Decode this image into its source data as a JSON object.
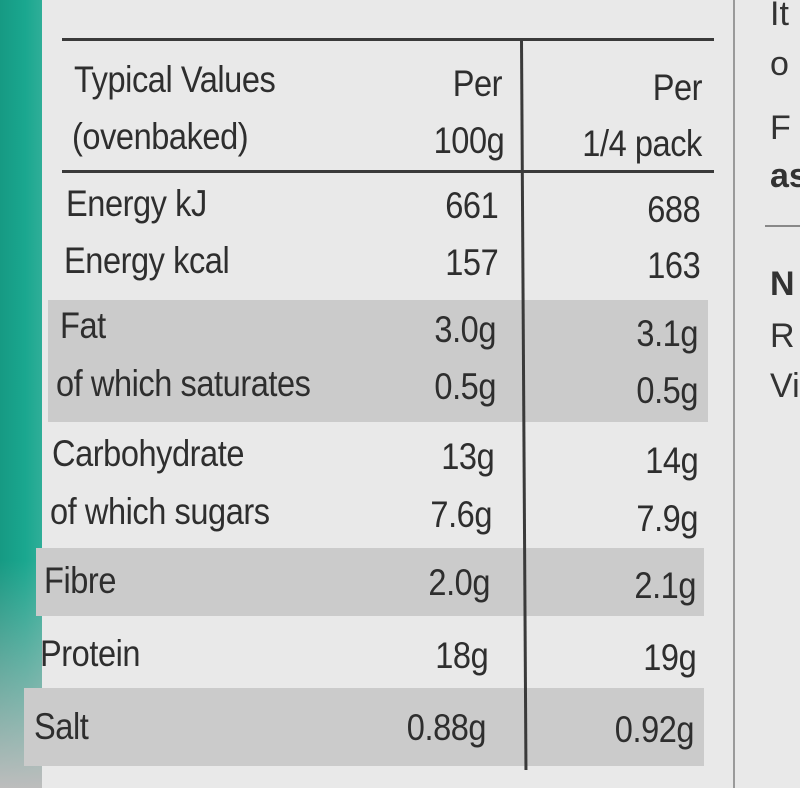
{
  "table": {
    "header": {
      "col1_line1": "Typical Values",
      "col1_line2": "(ovenbaked)",
      "col2_line1": "Per",
      "col2_line2": "100g",
      "col3_line1": "Per",
      "col3_line2": "1/4 pack"
    },
    "rows": [
      {
        "label": "Energy kJ",
        "per100": "661",
        "perPack": "688"
      },
      {
        "label": "Energy kcal",
        "per100": "157",
        "perPack": "163"
      },
      {
        "label": "Fat",
        "per100": "3.0g",
        "perPack": "3.1g"
      },
      {
        "label": "of which saturates",
        "per100": "0.5g",
        "perPack": "0.5g"
      },
      {
        "label": "Carbohydrate",
        "per100": "13g",
        "perPack": "14g"
      },
      {
        "label": "of which sugars",
        "per100": "7.6g",
        "perPack": "7.9g"
      },
      {
        "label": "Fibre",
        "per100": "2.0g",
        "perPack": "2.1g"
      },
      {
        "label": "Protein",
        "per100": "18g",
        "perPack": "19g"
      },
      {
        "label": "Salt",
        "per100": "0.88g",
        "perPack": "0.92g"
      }
    ]
  },
  "right_fragments": [
    "It",
    "o",
    "F",
    "as",
    "N",
    "R",
    "Vi"
  ],
  "colors": {
    "accent_teal": "#1aa78f",
    "band_grey": "#cbcbcb",
    "panel": "#e9e9e9"
  }
}
